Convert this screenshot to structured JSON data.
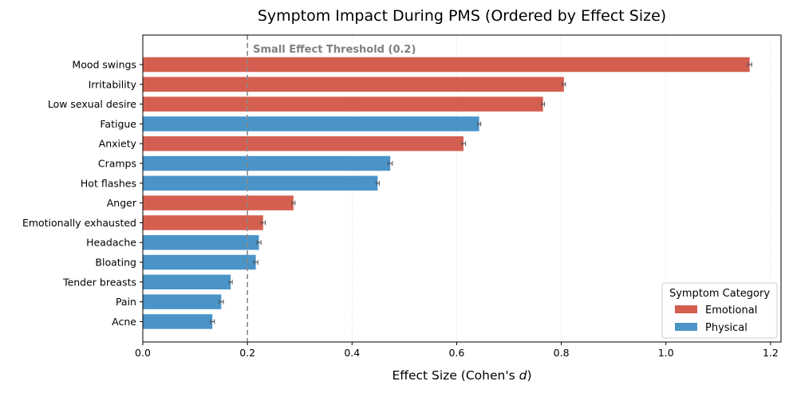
{
  "chart_data": {
    "type": "bar",
    "orientation": "horizontal",
    "title": "Symptom Impact During PMS (Ordered by Effect Size)",
    "xlabel_prefix": "Effect Size (Cohen's ",
    "xlabel_var": "d",
    "xlabel_suffix": ")",
    "xlim": [
      0.0,
      1.22
    ],
    "xticks": [
      0.0,
      0.2,
      0.4,
      0.6,
      0.8,
      1.0,
      1.2
    ],
    "xtick_labels": [
      "0.0",
      "0.2",
      "0.4",
      "0.6",
      "0.8",
      "1.0",
      "1.2"
    ],
    "grid": "x-dotted",
    "threshold": {
      "value": 0.2,
      "label": "Small Effect Threshold (0.2)"
    },
    "legend": {
      "title": "Symptom Category",
      "placement": "lower-right",
      "entries": [
        {
          "name": "Emotional",
          "color": "#d45f50"
        },
        {
          "name": "Physical",
          "color": "#4a94c8"
        }
      ]
    },
    "categories": [
      "Mood swings",
      "Irritability",
      "Low sexual desire",
      "Fatigue",
      "Anxiety",
      "Cramps",
      "Hot flashes",
      "Anger",
      "Emotionally exhausted",
      "Headache",
      "Bloating",
      "Tender breasts",
      "Pain",
      "Acne"
    ],
    "values": [
      1.16,
      0.805,
      0.765,
      0.643,
      0.613,
      0.473,
      0.449,
      0.288,
      0.23,
      0.222,
      0.216,
      0.168,
      0.15,
      0.133
    ],
    "errors": [
      0.004,
      0.003,
      0.003,
      0.003,
      0.004,
      0.004,
      0.003,
      0.003,
      0.004,
      0.004,
      0.004,
      0.003,
      0.004,
      0.004
    ],
    "series_category": [
      "Emotional",
      "Emotional",
      "Emotional",
      "Physical",
      "Emotional",
      "Physical",
      "Physical",
      "Emotional",
      "Emotional",
      "Physical",
      "Physical",
      "Physical",
      "Physical",
      "Physical"
    ]
  }
}
